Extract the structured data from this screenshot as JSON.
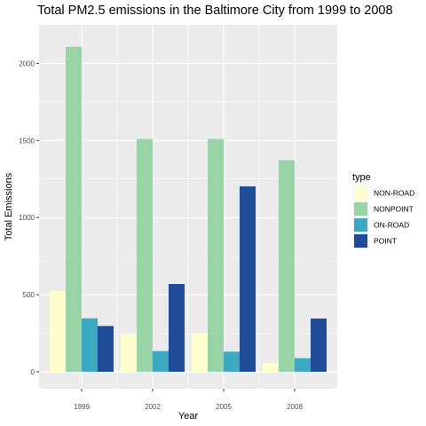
{
  "chart_data": {
    "type": "bar",
    "title": "Total PM2.5 emissions in the  Baltimore City from 1999 to 2008",
    "xlabel": "Year",
    "ylabel": "Total Emissions",
    "categories": [
      "1999",
      "2002",
      "2005",
      "2008"
    ],
    "ylim": [
      -110,
      2250
    ],
    "yticks": [
      0,
      500,
      1000,
      1500,
      2000
    ],
    "grid": true,
    "legend": {
      "title": "type",
      "position": "right"
    },
    "series": [
      {
        "name": "NON-ROAD",
        "color": "#ffffcc",
        "values": [
          522.94,
          240.85,
          248.93,
          55.82
        ]
      },
      {
        "name": "NONPOINT",
        "color": "#98d4a6",
        "values": [
          2107.63,
          1509.5,
          1509.5,
          1373.21
        ]
      },
      {
        "name": "ON-ROAD",
        "color": "#3aa9c1",
        "values": [
          346.82,
          134.31,
          130.43,
          88.28
        ]
      },
      {
        "name": "POINT",
        "color": "#1f4b99",
        "values": [
          296.8,
          569.26,
          1202.49,
          344.98
        ]
      }
    ]
  }
}
